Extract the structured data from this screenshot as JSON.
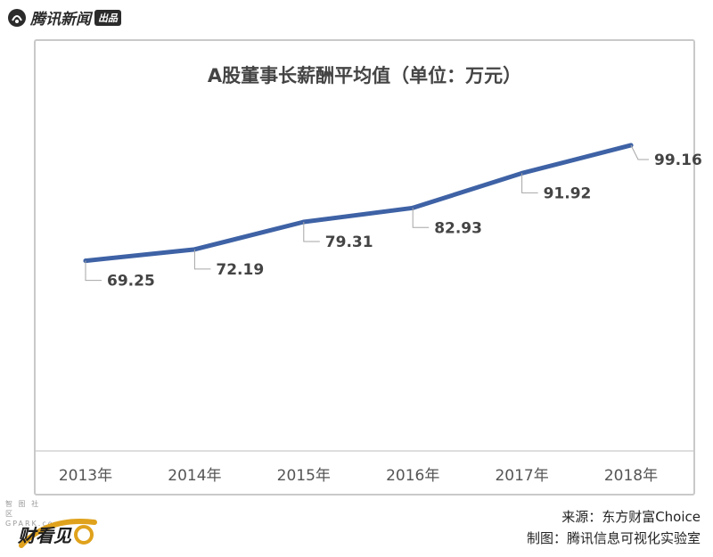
{
  "header": {
    "brand_name": "腾讯新闻",
    "brand_badge": "出品"
  },
  "chart_data": {
    "type": "line",
    "title": "A股董事长薪酬平均值（单位：万元）",
    "categories": [
      "2013年",
      "2014年",
      "2015年",
      "2016年",
      "2017年",
      "2018年"
    ],
    "series": [
      {
        "values": [
          69.25,
          72.19,
          79.31,
          82.93,
          91.92,
          99.16
        ]
      }
    ],
    "data_labels": [
      "69.25",
      "72.19",
      "79.31",
      "82.93",
      "91.92",
      "99.16"
    ],
    "ylim": [
      20,
      110
    ],
    "grid": false,
    "line_color": "#3e62a5"
  },
  "footer": {
    "source": "来源：东方财富Choice",
    "credit": "制图：腾讯信息可视化实验室",
    "watermark": "智 图 社 区 GPARK.com",
    "logo_text": "财看见"
  }
}
